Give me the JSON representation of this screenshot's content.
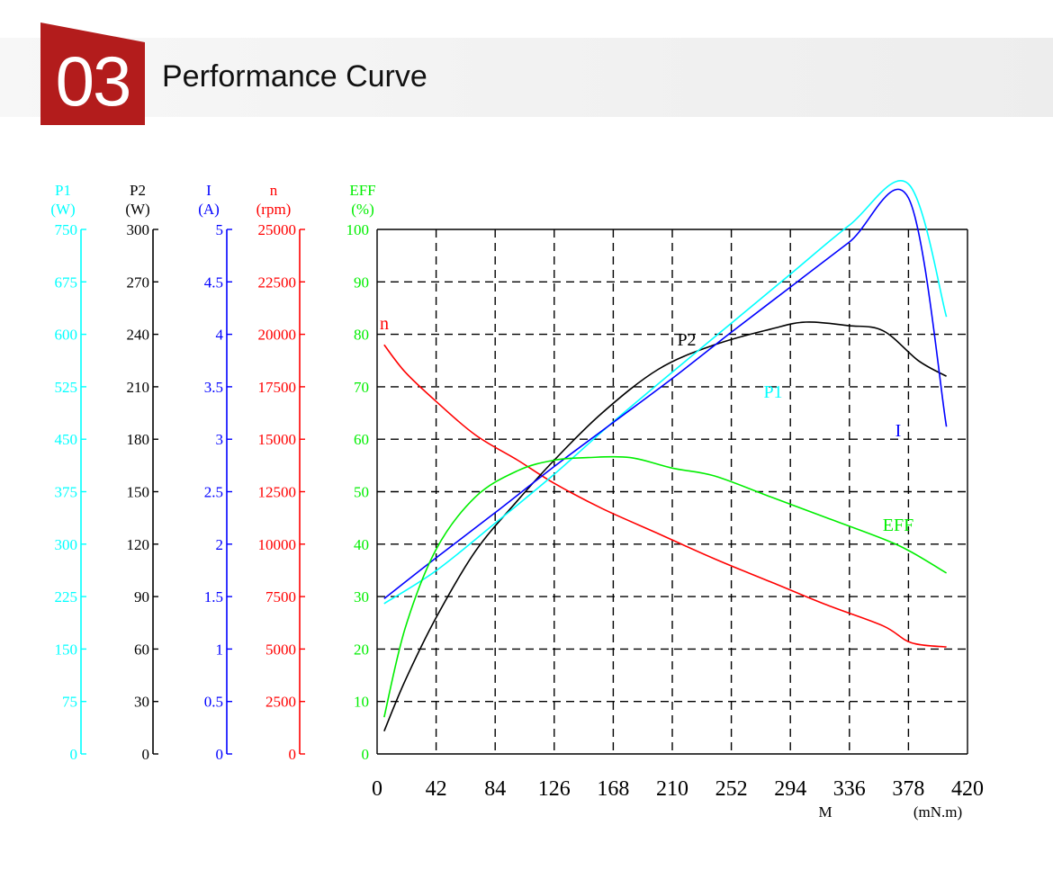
{
  "header": {
    "number": "03",
    "title": "Performance Curve",
    "badge_color": "#b31c1c"
  },
  "chart_data": {
    "type": "line",
    "grid": true,
    "grid_style": "dashed",
    "x": {
      "label": "M",
      "unit": "(mN.m)",
      "ticks": [
        "0",
        "42",
        "84",
        "126",
        "168",
        "210",
        "252",
        "294",
        "336",
        "378",
        "420"
      ],
      "range": [
        0,
        420
      ]
    },
    "y_axes": [
      {
        "key": "P1",
        "label": "P1",
        "unit": "(W)",
        "color": "#00ffff",
        "range": [
          0,
          750
        ],
        "ticks": [
          "0",
          "75",
          "150",
          "225",
          "300",
          "375",
          "450",
          "525",
          "600",
          "675",
          "750"
        ]
      },
      {
        "key": "P2",
        "label": "P2",
        "unit": "(W)",
        "color": "#000000",
        "range": [
          0,
          300
        ],
        "ticks": [
          "0",
          "30",
          "60",
          "90",
          "120",
          "150",
          "180",
          "210",
          "240",
          "270",
          "300"
        ]
      },
      {
        "key": "I",
        "label": "I",
        "unit": "(A)",
        "color": "#0000ff",
        "range": [
          0,
          5
        ],
        "ticks": [
          "0",
          "0.5",
          "1",
          "1.5",
          "2",
          "2.5",
          "3",
          "3.5",
          "4",
          "4.5",
          "5"
        ]
      },
      {
        "key": "n",
        "label": "n",
        "unit": "(rpm)",
        "color": "#ff0000",
        "range": [
          0,
          25000
        ],
        "ticks": [
          "0",
          "2500",
          "5000",
          "7500",
          "10000",
          "12500",
          "15000",
          "17500",
          "20000",
          "22500",
          "25000"
        ]
      },
      {
        "key": "EFF",
        "label": "EFF",
        "unit": "(%)",
        "color": "#00ee00",
        "range": [
          0,
          100
        ],
        "ticks": [
          "0",
          "10",
          "20",
          "30",
          "40",
          "50",
          "60",
          "70",
          "80",
          "90",
          "100"
        ]
      }
    ],
    "series": [
      {
        "name": "n",
        "axis": "n",
        "color": "#ff0000",
        "x": [
          5,
          20,
          42,
          70,
          100,
          126,
          160,
          200,
          240,
          280,
          320,
          360,
          380,
          405
        ],
        "y": [
          19500,
          18200,
          16800,
          15200,
          14000,
          12900,
          11700,
          10500,
          9300,
          8200,
          7100,
          6100,
          5300,
          5100
        ]
      },
      {
        "name": "P2",
        "axis": "P2",
        "color": "#000000",
        "x": [
          5,
          20,
          42,
          70,
          100,
          126,
          160,
          200,
          240,
          280,
          305,
          335,
          360,
          385,
          405
        ],
        "y": [
          13,
          42,
          78,
          116,
          145,
          168,
          195,
          220,
          234,
          243,
          247,
          245,
          242,
          225,
          216
        ]
      },
      {
        "name": "P1",
        "axis": "P1",
        "color": "#00ffff",
        "x": [
          5,
          42,
          84,
          126,
          168,
          210,
          252,
          294,
          336,
          378,
          405
        ],
        "y": [
          215,
          262,
          330,
          400,
          475,
          546,
          616,
          686,
          756,
          815,
          625
        ]
      },
      {
        "name": "I",
        "axis": "I",
        "color": "#0000ff",
        "x": [
          5,
          42,
          84,
          126,
          168,
          210,
          252,
          294,
          336,
          378,
          405
        ],
        "y": [
          1.48,
          1.87,
          2.3,
          2.74,
          3.16,
          3.58,
          4.02,
          4.45,
          4.88,
          5.3,
          3.12
        ]
      },
      {
        "name": "EFF",
        "axis": "EFF",
        "color": "#00ee00",
        "x": [
          5,
          20,
          42,
          70,
          100,
          126,
          150,
          180,
          210,
          240,
          280,
          320,
          360,
          380,
          405
        ],
        "y": [
          7,
          24,
          39,
          49,
          54,
          56,
          56.5,
          56.5,
          54.5,
          53,
          49,
          45,
          41,
          38.5,
          34.5
        ]
      }
    ],
    "annotations": [
      "n",
      "P2",
      "P1",
      "I",
      "EFF"
    ]
  }
}
